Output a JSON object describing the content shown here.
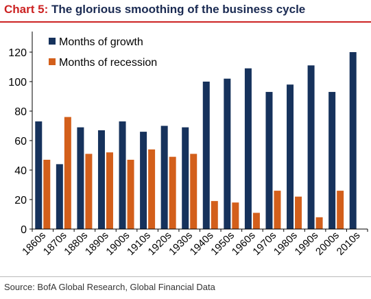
{
  "header": {
    "title_prefix": "Chart 5:",
    "title_main": "The glorious smoothing of the business cycle"
  },
  "footer": {
    "source": "Source:  BofA Global Research, Global Financial Data"
  },
  "colors": {
    "growth": "#16325c",
    "recession": "#d35f1b",
    "title_prefix": "#cc2222",
    "title_main": "#1a2a52"
  },
  "chart_data": {
    "type": "bar",
    "categories": [
      "1860s",
      "1870s",
      "1880s",
      "1890s",
      "1900s",
      "1910s",
      "1920s",
      "1930s",
      "1940s",
      "1950s",
      "1960s",
      "1970s",
      "1980s",
      "1990s",
      "2000s",
      "2010s"
    ],
    "series": [
      {
        "name": "Months of growth",
        "color": "#16325c",
        "values": [
          73,
          44,
          69,
          67,
          73,
          66,
          70,
          69,
          100,
          102,
          109,
          93,
          98,
          111,
          93,
          120
        ]
      },
      {
        "name": "Months of recession",
        "color": "#d35f1b",
        "values": [
          47,
          76,
          51,
          52,
          47,
          54,
          49,
          51,
          19,
          18,
          11,
          26,
          22,
          8,
          26,
          null
        ]
      }
    ],
    "ylim": [
      0,
      120
    ],
    "yticks": [
      0,
      20,
      40,
      60,
      80,
      100,
      120
    ],
    "xlabel": "",
    "ylabel": "",
    "grid": false,
    "legend_position": "top-left"
  }
}
